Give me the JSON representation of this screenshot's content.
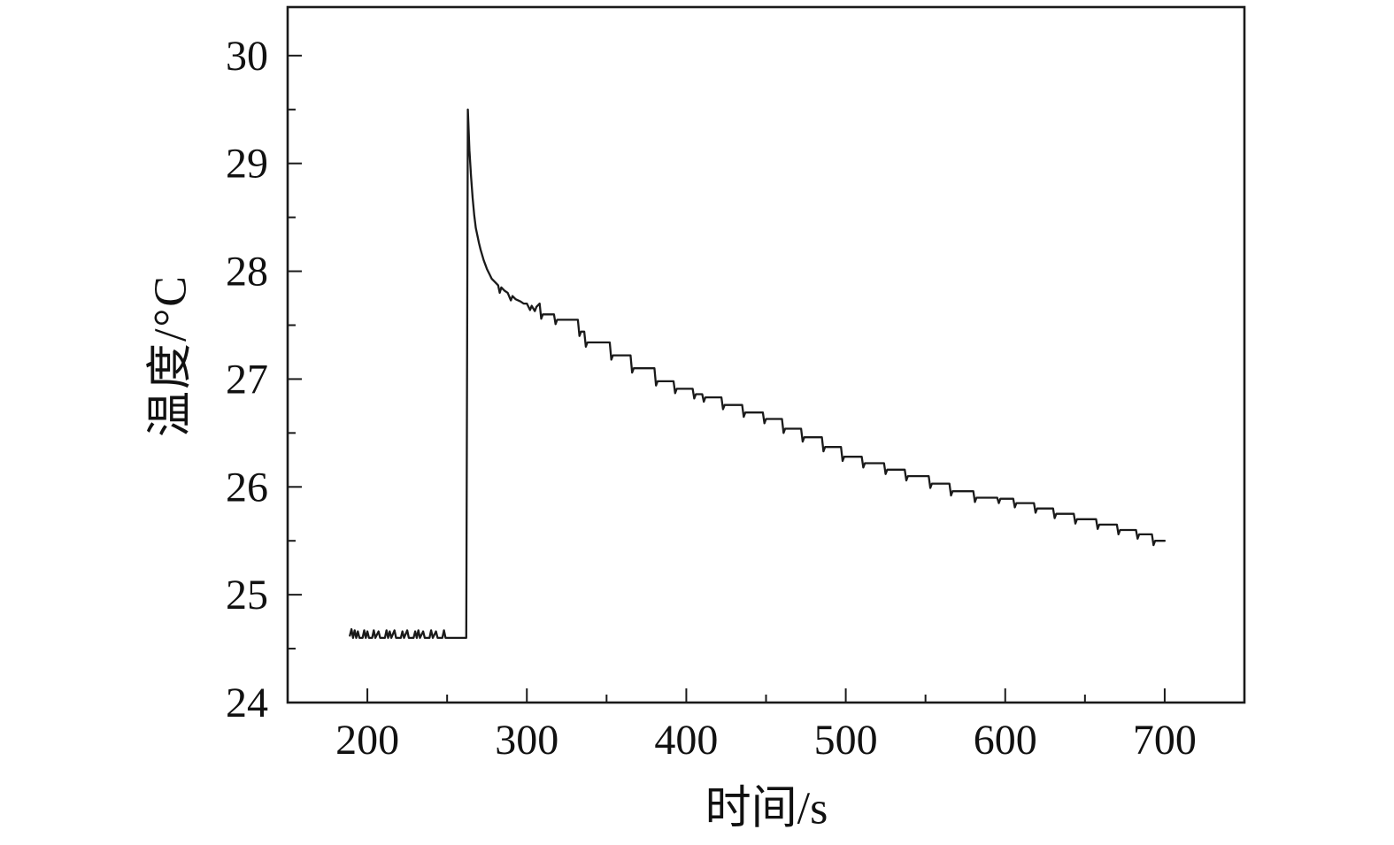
{
  "figure": {
    "background": "#ffffff",
    "line_color": "#1a1a1a",
    "text_color": "#111111"
  },
  "chart_data": {
    "type": "line",
    "title": "",
    "xlabel": "时间/s",
    "ylabel": "温度/°C",
    "xlim": [
      150,
      750
    ],
    "ylim": [
      24,
      30.45
    ],
    "xticks": [
      200,
      300,
      400,
      500,
      600,
      700
    ],
    "yticks": [
      24,
      25,
      26,
      27,
      28,
      29,
      30
    ],
    "x_minor_step": 50,
    "y_minor_step": 0.5,
    "grid": false,
    "legend_position": "none",
    "series": [
      {
        "name": "温度",
        "color": "#1a1a1a",
        "points": [
          [
            189,
            24.62
          ],
          [
            190,
            24.68
          ],
          [
            191,
            24.6
          ],
          [
            192,
            24.67
          ],
          [
            193,
            24.6
          ],
          [
            194,
            24.66
          ],
          [
            195,
            24.6
          ],
          [
            197,
            24.6
          ],
          [
            198,
            24.67
          ],
          [
            199,
            24.6
          ],
          [
            200,
            24.66
          ],
          [
            201,
            24.6
          ],
          [
            203,
            24.6
          ],
          [
            204,
            24.67
          ],
          [
            205,
            24.6
          ],
          [
            207,
            24.66
          ],
          [
            208,
            24.6
          ],
          [
            211,
            24.6
          ],
          [
            212,
            24.67
          ],
          [
            213,
            24.6
          ],
          [
            214,
            24.66
          ],
          [
            215,
            24.6
          ],
          [
            217,
            24.67
          ],
          [
            218,
            24.6
          ],
          [
            221,
            24.6
          ],
          [
            222,
            24.66
          ],
          [
            223,
            24.6
          ],
          [
            225,
            24.67
          ],
          [
            226,
            24.6
          ],
          [
            229,
            24.6
          ],
          [
            230,
            24.66
          ],
          [
            231,
            24.6
          ],
          [
            232,
            24.67
          ],
          [
            233,
            24.6
          ],
          [
            235,
            24.66
          ],
          [
            236,
            24.6
          ],
          [
            239,
            24.6
          ],
          [
            240,
            24.67
          ],
          [
            241,
            24.6
          ],
          [
            243,
            24.66
          ],
          [
            244,
            24.6
          ],
          [
            247,
            24.6
          ],
          [
            248,
            24.67
          ],
          [
            249,
            24.6
          ],
          [
            252,
            24.6
          ],
          [
            256,
            24.6
          ],
          [
            260,
            24.6
          ],
          [
            262,
            24.6
          ],
          [
            263,
            29.5
          ],
          [
            264,
            29.12
          ],
          [
            265,
            28.88
          ],
          [
            266,
            28.68
          ],
          [
            267,
            28.52
          ],
          [
            268,
            28.4
          ],
          [
            269,
            28.33
          ],
          [
            270,
            28.26
          ],
          [
            271,
            28.2
          ],
          [
            272,
            28.15
          ],
          [
            273,
            28.1
          ],
          [
            274,
            28.06
          ],
          [
            275,
            28.02
          ],
          [
            276,
            27.99
          ],
          [
            277,
            27.96
          ],
          [
            278,
            27.93
          ],
          [
            280,
            27.9
          ],
          [
            282,
            27.87
          ],
          [
            283,
            27.8
          ],
          [
            284,
            27.85
          ],
          [
            286,
            27.82
          ],
          [
            288,
            27.8
          ],
          [
            290,
            27.73
          ],
          [
            291,
            27.77
          ],
          [
            293,
            27.74
          ],
          [
            296,
            27.72
          ],
          [
            298,
            27.7
          ],
          [
            300,
            27.7
          ],
          [
            302,
            27.64
          ],
          [
            303,
            27.68
          ],
          [
            305,
            27.63
          ],
          [
            306,
            27.67
          ],
          [
            308,
            27.7
          ],
          [
            309,
            27.56
          ],
          [
            310,
            27.6
          ],
          [
            317,
            27.6
          ],
          [
            318,
            27.51
          ],
          [
            319,
            27.55
          ],
          [
            332,
            27.55
          ],
          [
            333,
            27.4
          ],
          [
            334,
            27.44
          ],
          [
            336,
            27.44
          ],
          [
            337,
            27.3
          ],
          [
            338,
            27.34
          ],
          [
            352,
            27.34
          ],
          [
            353,
            27.18
          ],
          [
            354,
            27.22
          ],
          [
            365,
            27.22
          ],
          [
            366,
            27.06
          ],
          [
            367,
            27.1
          ],
          [
            380,
            27.1
          ],
          [
            381,
            26.94
          ],
          [
            382,
            26.98
          ],
          [
            392,
            26.98
          ],
          [
            393,
            26.87
          ],
          [
            394,
            26.91
          ],
          [
            404,
            26.91
          ],
          [
            405,
            26.82
          ],
          [
            406,
            26.86
          ],
          [
            410,
            26.86
          ],
          [
            411,
            26.79
          ],
          [
            412,
            26.83
          ],
          [
            422,
            26.83
          ],
          [
            423,
            26.72
          ],
          [
            424,
            26.76
          ],
          [
            435,
            26.76
          ],
          [
            436,
            26.65
          ],
          [
            437,
            26.69
          ],
          [
            448,
            26.69
          ],
          [
            449,
            26.59
          ],
          [
            450,
            26.63
          ],
          [
            460,
            26.63
          ],
          [
            461,
            26.5
          ],
          [
            462,
            26.54
          ],
          [
            472,
            26.54
          ],
          [
            473,
            26.42
          ],
          [
            474,
            26.46
          ],
          [
            485,
            26.46
          ],
          [
            486,
            26.33
          ],
          [
            487,
            26.37
          ],
          [
            497,
            26.37
          ],
          [
            498,
            26.24
          ],
          [
            499,
            26.28
          ],
          [
            510,
            26.28
          ],
          [
            511,
            26.18
          ],
          [
            512,
            26.22
          ],
          [
            524,
            26.22
          ],
          [
            525,
            26.12
          ],
          [
            526,
            26.16
          ],
          [
            537,
            26.16
          ],
          [
            538,
            26.06
          ],
          [
            539,
            26.1
          ],
          [
            552,
            26.1
          ],
          [
            553,
            25.99
          ],
          [
            554,
            26.03
          ],
          [
            565,
            26.03
          ],
          [
            566,
            25.92
          ],
          [
            567,
            25.96
          ],
          [
            580,
            25.96
          ],
          [
            581,
            25.86
          ],
          [
            582,
            25.9
          ],
          [
            595,
            25.9
          ],
          [
            596,
            25.85
          ],
          [
            597,
            25.89
          ],
          [
            605,
            25.89
          ],
          [
            606,
            25.81
          ],
          [
            607,
            25.85
          ],
          [
            618,
            25.85
          ],
          [
            619,
            25.76
          ],
          [
            620,
            25.8
          ],
          [
            630,
            25.8
          ],
          [
            631,
            25.71
          ],
          [
            632,
            25.75
          ],
          [
            643,
            25.75
          ],
          [
            644,
            25.66
          ],
          [
            645,
            25.7
          ],
          [
            657,
            25.7
          ],
          [
            658,
            25.61
          ],
          [
            659,
            25.65
          ],
          [
            670,
            25.65
          ],
          [
            671,
            25.56
          ],
          [
            672,
            25.6
          ],
          [
            682,
            25.6
          ],
          [
            683,
            25.52
          ],
          [
            684,
            25.56
          ],
          [
            692,
            25.56
          ],
          [
            693,
            25.46
          ],
          [
            694,
            25.5
          ],
          [
            700,
            25.5
          ]
        ]
      }
    ]
  }
}
